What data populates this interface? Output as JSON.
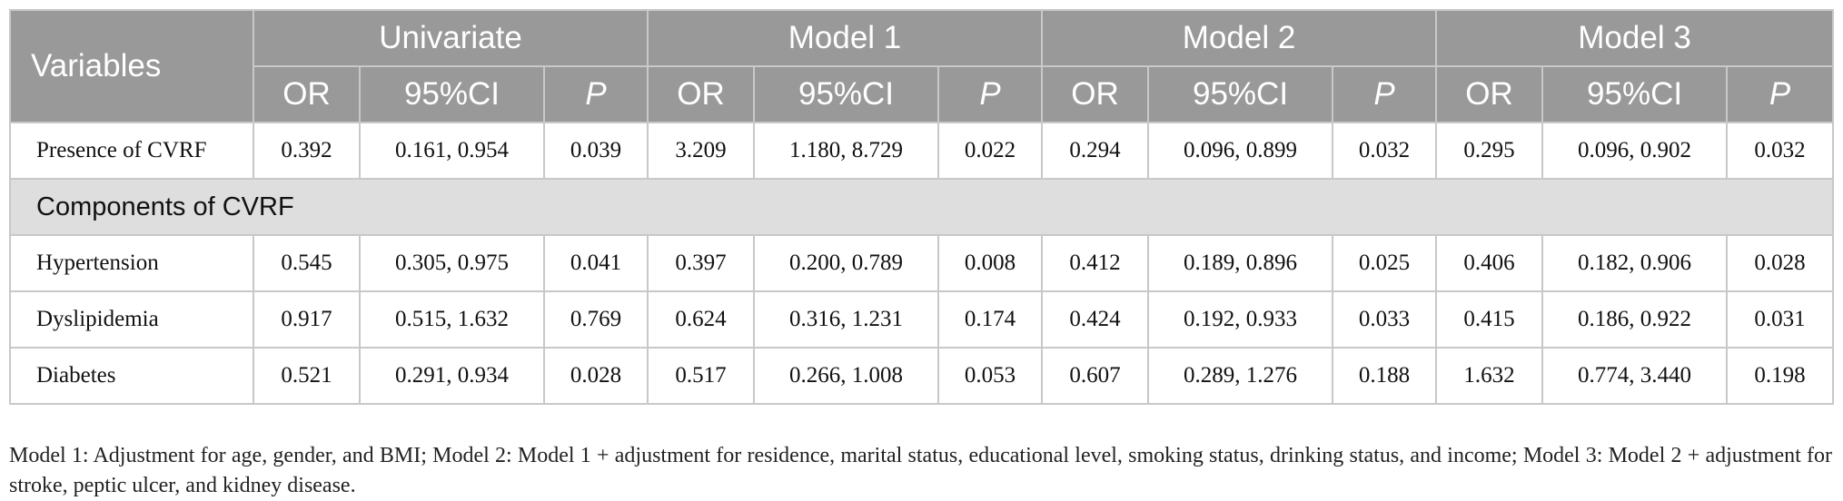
{
  "table": {
    "header": {
      "variables": "Variables",
      "groups": [
        "Univariate",
        "Model 1",
        "Model 2",
        "Model 3"
      ],
      "subcolumns": [
        "OR",
        "95%CI",
        "P"
      ]
    },
    "rows": [
      {
        "type": "data",
        "label": "Presence of CVRF",
        "values": [
          "0.392",
          "0.161, 0.954",
          "0.039",
          "3.209",
          "1.180, 8.729",
          "0.022",
          "0.294",
          "0.096, 0.899",
          "0.032",
          "0.295",
          "0.096, 0.902",
          "0.032"
        ]
      },
      {
        "type": "section",
        "label": "Components of CVRF"
      },
      {
        "type": "data",
        "label": "Hypertension",
        "values": [
          "0.545",
          "0.305, 0.975",
          "0.041",
          "0.397",
          "0.200, 0.789",
          "0.008",
          "0.412",
          "0.189, 0.896",
          "0.025",
          "0.406",
          "0.182, 0.906",
          "0.028"
        ]
      },
      {
        "type": "data",
        "label": "Dyslipidemia",
        "values": [
          "0.917",
          "0.515, 1.632",
          "0.769",
          "0.624",
          "0.316, 1.231",
          "0.174",
          "0.424",
          "0.192, 0.933",
          "0.033",
          "0.415",
          "0.186, 0.922",
          "0.031"
        ]
      },
      {
        "type": "data",
        "label": "Diabetes",
        "values": [
          "0.521",
          "0.291, 0.934",
          "0.028",
          "0.517",
          "0.266, 1.008",
          "0.053",
          "0.607",
          "0.289, 1.276",
          "0.188",
          "1.632",
          "0.774, 3.440",
          "0.198"
        ]
      }
    ]
  },
  "footnote": "Model 1: Adjustment for age, gender, and BMI; Model 2: Model 1 + adjustment for residence, marital status, educational level, smoking status, drinking status, and income; Model 3: Model 2 + adjustment for stroke, peptic ulcer, and kidney disease."
}
